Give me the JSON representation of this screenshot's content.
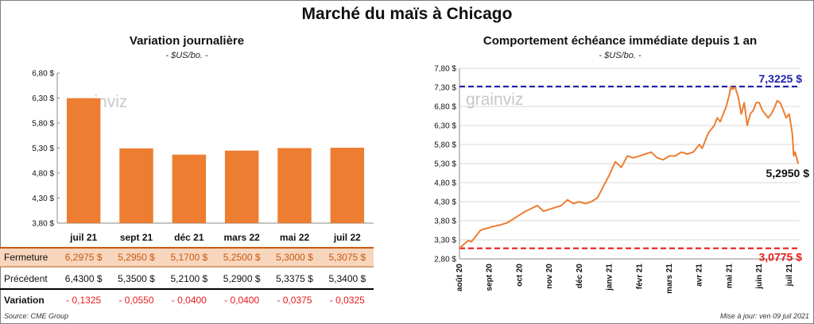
{
  "title": "Marché du maïs à Chicago",
  "source": "Source: CME Group",
  "updated": "Mise à jour: ven 09 juil 2021",
  "watermark": "grainviz",
  "colors": {
    "bar": "#ed7d31",
    "line": "#ed7d31",
    "high_line": "#1f1fae",
    "low_line": "#e81c1c",
    "negative": "#e81c1c",
    "fermeture_bg": "#f8d5bd"
  },
  "chart_data": [
    {
      "type": "bar",
      "title": "Variation journalière",
      "subtitle": "- $US/bo. -",
      "categories": [
        "juil 21",
        "sept 21",
        "déc 21",
        "mars 22",
        "mai 22",
        "juil 22"
      ],
      "values": [
        6.2975,
        5.295,
        5.17,
        5.25,
        5.3,
        5.3075
      ],
      "ylim": [
        3.8,
        6.8
      ],
      "yticks": [
        "3,80 $",
        "4,30 $",
        "4,80 $",
        "5,30 $",
        "5,80 $",
        "6,30 $",
        "6,80 $"
      ],
      "grid": false,
      "table": {
        "rows": [
          {
            "label": "Fermeture",
            "values": [
              "6,2975  $",
              "5,2950  $",
              "5,1700  $",
              "5,2500  $",
              "5,3000  $",
              "5,3075  $"
            ]
          },
          {
            "label": "Précédent",
            "values": [
              "6,4300  $",
              "5,3500  $",
              "5,2100  $",
              "5,2900  $",
              "5,3375  $",
              "5,3400  $"
            ]
          },
          {
            "label": "Variation",
            "values": [
              "- 0,1325",
              "- 0,0550",
              "- 0,0400",
              "- 0,0400",
              "- 0,0375",
              "- 0,0325"
            ]
          }
        ]
      }
    },
    {
      "type": "line",
      "title": "Comportement  échéance immédiate depuis 1 an",
      "subtitle": "- $US/bo. -",
      "xlabels": [
        "août 20",
        "sept 20",
        "oct 20",
        "nov 20",
        "déc 20",
        "janv 21",
        "févr 21",
        "mars 21",
        "avr 21",
        "mai 21",
        "juin 21",
        "juil 21"
      ],
      "ylim": [
        2.8,
        7.8
      ],
      "yticks": [
        "2,80 $",
        "3,30 $",
        "3,80 $",
        "4,30 $",
        "4,80 $",
        "5,30 $",
        "5,80 $",
        "6,30 $",
        "6,80 $",
        "7,30 $",
        "7,80 $"
      ],
      "grid": true,
      "x_months": [
        0,
        0.1,
        0.2,
        0.3,
        0.4,
        0.5,
        0.6,
        0.7,
        0.8,
        0.9,
        1.0,
        1.1,
        1.2,
        1.4,
        1.6,
        1.8,
        2.0,
        2.2,
        2.4,
        2.6,
        2.8,
        3.0,
        3.2,
        3.4,
        3.6,
        3.8,
        4.0,
        4.2,
        4.4,
        4.6,
        4.8,
        5.0,
        5.2,
        5.4,
        5.6,
        5.8,
        6.0,
        6.2,
        6.4,
        6.6,
        6.8,
        7.0,
        7.2,
        7.4,
        7.6,
        7.8,
        8.0,
        8.1,
        8.2,
        8.3,
        8.4,
        8.5,
        8.6,
        8.7,
        8.8,
        8.9,
        9.0,
        9.05,
        9.1,
        9.2,
        9.3,
        9.4,
        9.5,
        9.6,
        9.7,
        9.8,
        9.9,
        10.0,
        10.1,
        10.2,
        10.3,
        10.4,
        10.5,
        10.6,
        10.7,
        10.8,
        10.9,
        11.0,
        11.1,
        11.15,
        11.2,
        11.3
      ],
      "values": [
        3.08,
        3.15,
        3.22,
        3.28,
        3.25,
        3.35,
        3.45,
        3.55,
        3.58,
        3.6,
        3.62,
        3.65,
        3.66,
        3.7,
        3.75,
        3.85,
        3.95,
        4.05,
        4.12,
        4.2,
        4.05,
        4.1,
        4.15,
        4.2,
        4.35,
        4.25,
        4.3,
        4.25,
        4.3,
        4.4,
        4.7,
        5.0,
        5.35,
        5.2,
        5.5,
        5.45,
        5.5,
        5.55,
        5.6,
        5.45,
        5.4,
        5.5,
        5.5,
        5.6,
        5.55,
        5.6,
        5.8,
        5.7,
        5.9,
        6.1,
        6.2,
        6.3,
        6.5,
        6.4,
        6.6,
        6.8,
        7.1,
        7.3225,
        7.25,
        7.3,
        7.05,
        6.6,
        6.9,
        6.3,
        6.6,
        6.7,
        6.9,
        6.9,
        6.7,
        6.6,
        6.5,
        6.6,
        6.75,
        6.95,
        6.9,
        6.7,
        6.5,
        6.6,
        6.1,
        5.5,
        5.6,
        5.295
      ],
      "high": {
        "value": 7.3225,
        "label": "7,3225 $"
      },
      "low": {
        "value": 3.0775,
        "label": "3,0775 $"
      },
      "last": {
        "value": 5.295,
        "label": "5,2950 $"
      }
    }
  ]
}
